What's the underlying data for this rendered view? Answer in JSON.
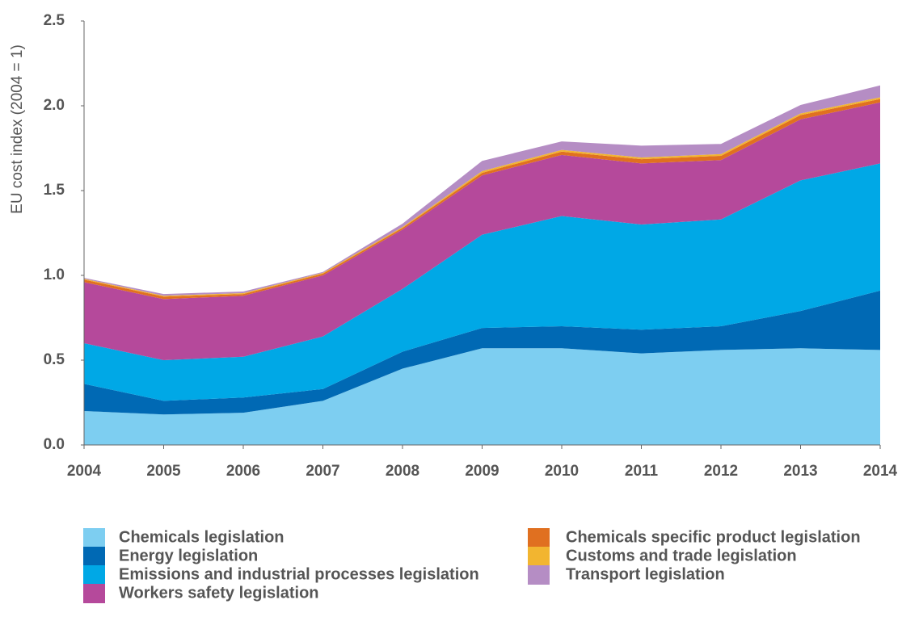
{
  "chart_data": {
    "type": "stacked-area",
    "y_label": "EU cost index (2004 = 1)",
    "categories": [
      "2004",
      "2005",
      "2006",
      "2007",
      "2008",
      "2009",
      "2010",
      "2011",
      "2012",
      "2013",
      "2014"
    ],
    "ylim": [
      0,
      2.5
    ],
    "yticks": [
      {
        "value": 0,
        "label": "0.0"
      },
      0.5,
      {
        "value": 1,
        "label": "1.0"
      },
      1.5,
      {
        "value": 2,
        "label": "2.0"
      },
      2.5
    ],
    "series": [
      {
        "name": "Chemicals legislation",
        "color": "#7dcef1",
        "values": [
          0.2,
          0.18,
          0.19,
          0.26,
          0.45,
          0.57,
          0.57,
          0.54,
          0.56,
          0.57,
          0.56
        ]
      },
      {
        "name": "Energy legislation",
        "color": "#0069b4",
        "values": [
          0.16,
          0.08,
          0.09,
          0.07,
          0.1,
          0.12,
          0.13,
          0.14,
          0.14,
          0.22,
          0.35
        ]
      },
      {
        "name": "Emissions and industrial processes legislation",
        "color": "#00a8e6",
        "values": [
          0.24,
          0.24,
          0.24,
          0.31,
          0.37,
          0.55,
          0.65,
          0.62,
          0.63,
          0.77,
          0.75
        ]
      },
      {
        "name": "Workers safety legislation",
        "color": "#b5499b",
        "values": [
          0.36,
          0.36,
          0.36,
          0.36,
          0.35,
          0.35,
          0.36,
          0.36,
          0.35,
          0.36,
          0.36
        ]
      },
      {
        "name": "Chemicals specific product legislation",
        "color": "#e07020",
        "values": [
          0.015,
          0.015,
          0.01,
          0.01,
          0.01,
          0.015,
          0.02,
          0.025,
          0.025,
          0.025,
          0.02
        ]
      },
      {
        "name": "Customs and trade legislation",
        "color": "#f2b530",
        "values": [
          0.005,
          0.005,
          0.005,
          0.005,
          0.005,
          0.01,
          0.01,
          0.01,
          0.01,
          0.01,
          0.01
        ]
      },
      {
        "name": "Transport legislation",
        "color": "#b58dc4",
        "values": [
          0.005,
          0.01,
          0.01,
          0.005,
          0.02,
          0.06,
          0.05,
          0.07,
          0.06,
          0.05,
          0.07
        ]
      }
    ]
  }
}
